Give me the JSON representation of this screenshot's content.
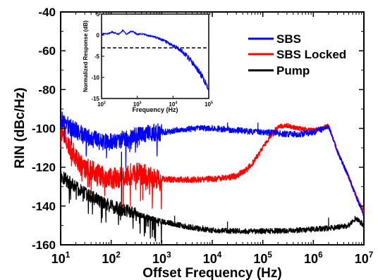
{
  "chart_data": [
    {
      "type": "line",
      "title": "",
      "xlabel": "Offset Frequency (Hz)",
      "ylabel": "RIN (dBc/Hz)",
      "xscale": "log",
      "xlim": [
        10,
        10000000
      ],
      "ylim": [
        -160,
        -40
      ],
      "x_ticks": [
        {
          "base": "10",
          "exp": "1"
        },
        {
          "base": "10",
          "exp": "2"
        },
        {
          "base": "10",
          "exp": "3"
        },
        {
          "base": "10",
          "exp": "4"
        },
        {
          "base": "10",
          "exp": "5"
        },
        {
          "base": "10",
          "exp": "6"
        },
        {
          "base": "10",
          "exp": "7"
        }
      ],
      "y_ticks": [
        "-40",
        "-60",
        "-80",
        "-100",
        "-120",
        "-140",
        "-160"
      ],
      "legend_position": "top-right",
      "grid": false,
      "series": [
        {
          "name": "SBS",
          "color": "#0000ff",
          "x": [
            10,
            12,
            15,
            20,
            30,
            50,
            70,
            100,
            150,
            200,
            300,
            500,
            700,
            1000,
            2000,
            3000,
            5000,
            7000,
            10000,
            20000,
            30000,
            50000,
            100000,
            200000,
            300000,
            500000,
            1000000,
            1500000,
            2000000,
            3000000,
            5000000,
            7000000,
            10000000
          ],
          "y": [
            -95,
            -97,
            -99,
            -101,
            -104,
            -106,
            -107,
            -107,
            -106,
            -105,
            -104,
            -103,
            -102,
            -102,
            -101,
            -100.5,
            -100,
            -100,
            -100,
            -100.5,
            -101,
            -101.5,
            -102,
            -102.5,
            -103,
            -103,
            -102,
            -100.5,
            -99,
            -112,
            -125,
            -135,
            -145
          ]
        },
        {
          "name": "SBS Locked",
          "color": "#ff0000",
          "x": [
            10,
            12,
            15,
            20,
            30,
            50,
            70,
            100,
            150,
            200,
            300,
            500,
            700,
            1000,
            2000,
            5000,
            10000,
            20000,
            30000,
            50000,
            70000,
            100000,
            150000,
            200000,
            300000,
            500000,
            1000000,
            1500000,
            2000000,
            3000000,
            5000000,
            7000000,
            10000000
          ],
          "y": [
            -97,
            -103,
            -110,
            -115,
            -120,
            -123,
            -125,
            -126,
            -125,
            -124,
            -123,
            -124,
            -126,
            -126,
            -126.5,
            -126.5,
            -126,
            -125.5,
            -124.5,
            -121,
            -116,
            -110,
            -103,
            -99,
            -98.5,
            -100,
            -101,
            -100,
            -98.5,
            -112,
            -125,
            -135,
            -143
          ]
        },
        {
          "name": "Pump",
          "color": "#000000",
          "x": [
            10,
            12,
            15,
            20,
            30,
            50,
            70,
            100,
            150,
            200,
            300,
            500,
            700,
            1000,
            2000,
            3000,
            5000,
            7000,
            10000,
            20000,
            50000,
            100000,
            200000,
            500000,
            1000000,
            2000000,
            3000000,
            5000000,
            7000000,
            10000000
          ],
          "y": [
            -124,
            -126,
            -128,
            -130.5,
            -133.5,
            -136.5,
            -138.5,
            -140,
            -141.5,
            -142.5,
            -144,
            -145.5,
            -147,
            -148,
            -149.5,
            -150.5,
            -151.5,
            -152,
            -152.5,
            -152.8,
            -153,
            -153,
            -152.8,
            -152.5,
            -152,
            -151.5,
            -151,
            -150,
            -146,
            -150
          ]
        }
      ],
      "spikes": [
        {
          "x": 160,
          "y": -112,
          "series": "Pump"
        },
        {
          "x": 1800,
          "y": -145,
          "series": "Pump"
        },
        {
          "x": 6500,
          "y": -150,
          "series": "Pump"
        },
        {
          "x": 20000,
          "y": -148,
          "series": "Pump"
        },
        {
          "x": 2000000,
          "y": -146,
          "series": "Pump"
        },
        {
          "x": 20000,
          "y": -97,
          "series": "SBS"
        },
        {
          "x": 80000,
          "y": -97,
          "series": "SBS"
        }
      ]
    },
    {
      "type": "line",
      "title": "",
      "xlabel": "Frequency (Hz)",
      "ylabel": "Normalized Response (dB)",
      "xscale": "log",
      "xlim": [
        100,
        100000
      ],
      "ylim": [
        -15,
        5
      ],
      "x_ticks": [
        {
          "base": "10",
          "exp": "2"
        },
        {
          "base": "10",
          "exp": "3"
        },
        {
          "base": "10",
          "exp": "4"
        },
        {
          "base": "10",
          "exp": "5"
        }
      ],
      "y_ticks": [
        "5",
        "0",
        "-5",
        "-10",
        "-15"
      ],
      "series": [
        {
          "color": "#0000ff",
          "x": [
            100,
            150,
            200,
            300,
            400,
            500,
            700,
            1000,
            1500,
            2000,
            3000,
            4000,
            5000,
            7000,
            10000,
            15000,
            20000,
            30000,
            40000,
            50000,
            70000,
            100000
          ],
          "y": [
            0.3,
            0.3,
            0.8,
            0.2,
            1.2,
            0.2,
            1.0,
            0.2,
            0.3,
            -0.1,
            -0.4,
            -0.8,
            -1.1,
            -1.7,
            -2.5,
            -3.3,
            -4.2,
            -5.8,
            -7.2,
            -8.3,
            -10.2,
            -12.5
          ]
        }
      ],
      "reference_line": {
        "y": -3,
        "style": "dashed",
        "color": "#000000"
      }
    }
  ],
  "legend": {
    "items": [
      {
        "label": "SBS",
        "color": "#0000ff"
      },
      {
        "label": "SBS Locked",
        "color": "#ff0000"
      },
      {
        "label": "Pump",
        "color": "#000000"
      }
    ]
  }
}
